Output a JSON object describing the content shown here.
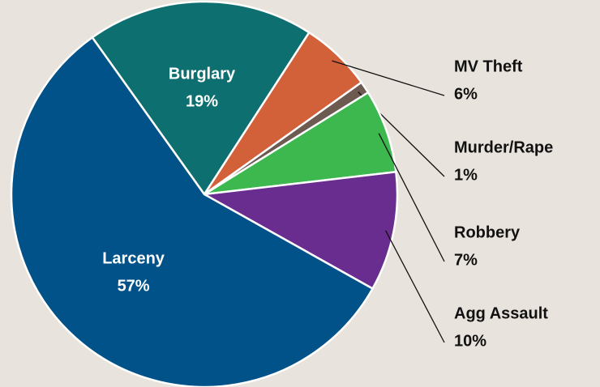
{
  "chart_data": {
    "type": "pie",
    "categories": [
      "Burglary",
      "MV Theft",
      "Murder/Rape",
      "Robbery",
      "Agg Assault",
      "Larceny"
    ],
    "values": [
      19,
      6,
      1,
      7,
      10,
      57
    ],
    "value_labels": [
      "19%",
      "6%",
      "1%",
      "7%",
      "10%",
      "57%"
    ],
    "colors": [
      "#0e6f70",
      "#d2613a",
      "#6d5b52",
      "#3db84e",
      "#682d8f",
      "#02528a"
    ]
  }
}
